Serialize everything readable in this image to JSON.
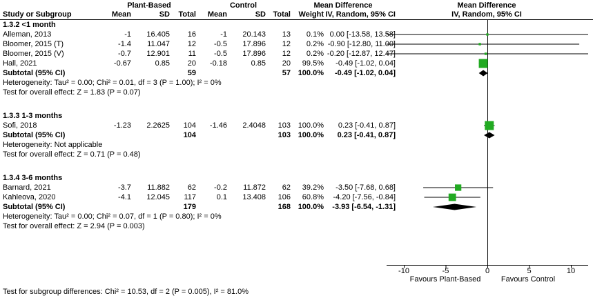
{
  "header": {
    "group1": "Plant-Based",
    "group2": "Control",
    "md": "Mean Difference",
    "method": "IV, Random, 95% CI",
    "cols": {
      "study": "Study or Subgroup",
      "mean": "Mean",
      "sd": "SD",
      "total": "Total",
      "weight": "Weight",
      "ci": "IV, Random, 95% CI"
    }
  },
  "colors": {
    "square": "#22AA22",
    "diamond": "#000000",
    "line": "#000000",
    "axis": "#000000"
  },
  "chart_data": {
    "type": "scatter",
    "subtype": "forest-plot",
    "effect_measure": "Mean Difference — IV, Random, 95% CI",
    "xlim": [
      -12,
      12
    ],
    "axis": {
      "ticks": [
        -10,
        -5,
        0,
        5,
        10
      ],
      "favours_left": "Favours Plant-Based",
      "favours_right": "Favours Control"
    },
    "groups": [
      {
        "title": "1.3.2 <1 month",
        "studies": [
          {
            "name": "Alleman, 2013",
            "mean1": "-1",
            "sd1": "16.405",
            "total1": "16",
            "mean2": "-1",
            "sd2": "20.143",
            "total2": "13",
            "weight": "0.1%",
            "ci_text": "0.00 [-13.58, 13.58]",
            "est": 0.0,
            "lo": -13.58,
            "hi": 13.58,
            "weight_pct": 0.1
          },
          {
            "name": "Bloomer, 2015 (T)",
            "mean1": "-1.4",
            "sd1": "11.047",
            "total1": "12",
            "mean2": "-0.5",
            "sd2": "17.896",
            "total2": "12",
            "weight": "0.2%",
            "ci_text": "-0.90 [-12.80, 11.00]",
            "est": -0.9,
            "lo": -12.8,
            "hi": 11.0,
            "weight_pct": 0.2
          },
          {
            "name": "Bloomer, 2015 (V)",
            "mean1": "-0.7",
            "sd1": "12.901",
            "total1": "11",
            "mean2": "-0.5",
            "sd2": "17.896",
            "total2": "12",
            "weight": "0.2%",
            "ci_text": "-0.20 [-12.87, 12.47]",
            "est": -0.2,
            "lo": -12.87,
            "hi": 12.47,
            "weight_pct": 0.2
          },
          {
            "name": "Hall, 2021",
            "mean1": "-0.67",
            "sd1": "0.85",
            "total1": "20",
            "mean2": "-0.18",
            "sd2": "0.85",
            "total2": "20",
            "weight": "99.5%",
            "ci_text": "-0.49 [-1.02, 0.04]",
            "est": -0.49,
            "lo": -1.02,
            "hi": 0.04,
            "weight_pct": 99.5
          }
        ],
        "subtotal": {
          "label": "Subtotal (95% CI)",
          "total1": "59",
          "total2": "57",
          "weight": "100.0%",
          "ci_text": "-0.49 [-1.02, 0.04]",
          "est": -0.49,
          "lo": -1.02,
          "hi": 0.04
        },
        "heterogeneity": "Heterogeneity: Tau² = 0.00; Chi² = 0.01, df = 3 (P = 1.00); I² = 0%",
        "overall_test": "Test for overall effect: Z = 1.83 (P = 0.07)"
      },
      {
        "title": "1.3.3 1-3 months",
        "studies": [
          {
            "name": "Sofi, 2018",
            "mean1": "-1.23",
            "sd1": "2.2625",
            "total1": "104",
            "mean2": "-1.46",
            "sd2": "2.4048",
            "total2": "103",
            "weight": "100.0%",
            "ci_text": "0.23 [-0.41, 0.87]",
            "est": 0.23,
            "lo": -0.41,
            "hi": 0.87,
            "weight_pct": 100.0
          }
        ],
        "subtotal": {
          "label": "Subtotal (95% CI)",
          "total1": "104",
          "total2": "103",
          "weight": "100.0%",
          "ci_text": "0.23 [-0.41, 0.87]",
          "est": 0.23,
          "lo": -0.41,
          "hi": 0.87
        },
        "heterogeneity": "Heterogeneity: Not applicable",
        "overall_test": "Test for overall effect: Z = 0.71 (P = 0.48)"
      },
      {
        "title": "1.3.4 3-6 months",
        "studies": [
          {
            "name": "Barnard, 2021",
            "mean1": "-3.7",
            "sd1": "11.882",
            "total1": "62",
            "mean2": "-0.2",
            "sd2": "11.872",
            "total2": "62",
            "weight": "39.2%",
            "ci_text": "-3.50 [-7.68, 0.68]",
            "est": -3.5,
            "lo": -7.68,
            "hi": 0.68,
            "weight_pct": 39.2
          },
          {
            "name": "Kahleova, 2020",
            "mean1": "-4.1",
            "sd1": "12.045",
            "total1": "117",
            "mean2": "0.1",
            "sd2": "13.408",
            "total2": "106",
            "weight": "60.8%",
            "ci_text": "-4.20 [-7.56, -0.84]",
            "est": -4.2,
            "lo": -7.56,
            "hi": -0.84,
            "weight_pct": 60.8
          }
        ],
        "subtotal": {
          "label": "Subtotal (95% CI)",
          "total1": "179",
          "total2": "168",
          "weight": "100.0%",
          "ci_text": "-3.93 [-6.54, -1.31]",
          "est": -3.93,
          "lo": -6.54,
          "hi": -1.31
        },
        "heterogeneity": "Heterogeneity: Tau² = 0.00; Chi² = 0.07, df = 1 (P = 0.80); I² = 0%",
        "overall_test": "Test for overall effect: Z = 2.94 (P = 0.003)"
      }
    ],
    "footer": "Test for subgroup differences: Chi² = 10.53, df = 2 (P = 0.005), I² = 81.0%"
  }
}
